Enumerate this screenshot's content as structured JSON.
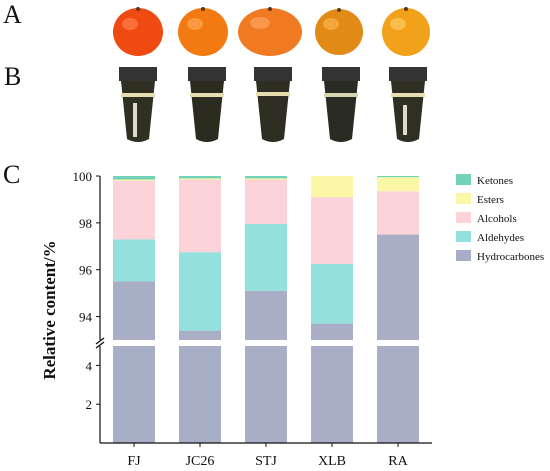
{
  "panels": {
    "a": "A",
    "b": "B",
    "c": "C"
  },
  "photos": {
    "fruits": [
      "FJ",
      "JC26",
      "STJ",
      "XLB",
      "RA"
    ],
    "fruit_colors": [
      "#ef4a12",
      "#f37a12",
      "#f07a22",
      "#e18a16",
      "#f2a21a"
    ]
  },
  "chart_data": {
    "type": "bar",
    "stacked": true,
    "broken_y_axis": true,
    "categories": [
      "FJ",
      "JC26",
      "STJ",
      "XLB",
      "RA"
    ],
    "ylabel": "Relative content/%",
    "xlabel": "",
    "title": "",
    "upper_ylim": [
      93,
      100
    ],
    "upper_yticks": [
      94,
      96,
      98,
      100
    ],
    "lower_ylim": [
      0,
      5
    ],
    "lower_yticks": [
      2,
      4
    ],
    "legend_position": "right",
    "series": [
      {
        "name": "Hydrocarbones",
        "color": "#a8aec6",
        "values": [
          95.5,
          93.4,
          95.1,
          93.7,
          97.5
        ]
      },
      {
        "name": "Aldehydes",
        "color": "#93e0dc",
        "values": [
          1.8,
          3.35,
          2.85,
          2.55,
          0.0
        ]
      },
      {
        "name": "Alcohols",
        "color": "#fbd3d8",
        "values": [
          2.5,
          3.1,
          1.9,
          2.85,
          1.85
        ]
      },
      {
        "name": "Esters",
        "color": "#fbf7a6",
        "values": [
          0.05,
          0.05,
          0.05,
          0.9,
          0.6
        ]
      },
      {
        "name": "Ketones",
        "color": "#72d3b8",
        "values": [
          0.15,
          0.1,
          0.1,
          0.0,
          0.05
        ]
      }
    ],
    "legend_order": [
      "Ketones",
      "Esters",
      "Alcohols",
      "Aldehydes",
      "Hydrocarbones"
    ]
  }
}
